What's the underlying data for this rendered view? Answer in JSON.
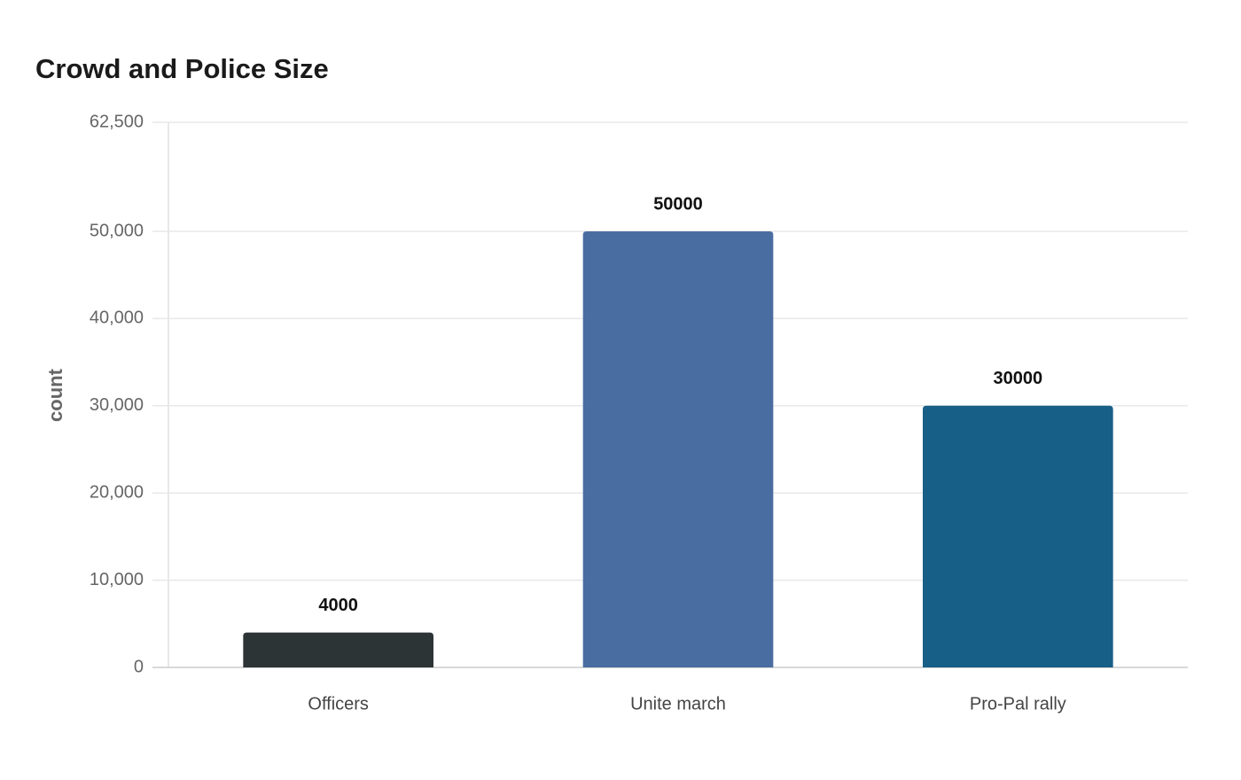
{
  "chart_data": {
    "type": "bar",
    "title": "Crowd and Police Size",
    "y_label": "count",
    "categories": [
      "Officers",
      "Unite march",
      "Pro-Pal rally"
    ],
    "values": [
      4000,
      50000,
      30000
    ],
    "colors": [
      "#2d3436",
      "#4a6da1",
      "#175f87"
    ],
    "ylim": [
      0,
      62500
    ],
    "yticks": [
      0,
      {
        "value": 10000,
        "label": "10,000"
      },
      {
        "value": 20000,
        "label": "20,000"
      },
      {
        "value": 30000,
        "label": "30,000"
      },
      {
        "value": 40000,
        "label": "40,000"
      },
      {
        "value": 50000,
        "label": "50,000"
      },
      {
        "value": 62500,
        "label": "62,500"
      }
    ],
    "grid": true
  }
}
